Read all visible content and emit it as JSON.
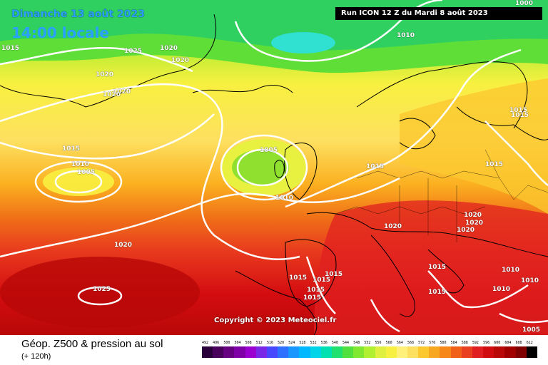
{
  "header": {
    "date_line": "Dimanche 13 août 2023",
    "time_line": "14:00 locale",
    "run_info": "Run ICON 12 Z du Mardi 8 août 2023"
  },
  "copyright": "Copyright © 2023 Meteociel.fr",
  "footer": {
    "title": "Géop. Z500 & pression au sol",
    "subtitle": "(+ 120h)"
  },
  "legend": {
    "levels": [
      "492",
      "496",
      "500",
      "504",
      "508",
      "512",
      "516",
      "520",
      "524",
      "528",
      "532",
      "536",
      "540",
      "544",
      "548",
      "552",
      "556",
      "560",
      "564",
      "568",
      "572",
      "576",
      "580",
      "584",
      "588",
      "592",
      "596",
      "600",
      "604",
      "608",
      "612"
    ],
    "colors": [
      "#2a003a",
      "#48005a",
      "#660080",
      "#8000a8",
      "#9a00d0",
      "#7a28e8",
      "#4848ff",
      "#2e70ff",
      "#1a96ff",
      "#00b8ff",
      "#00d4e8",
      "#00e0b0",
      "#20e070",
      "#50e040",
      "#80e830",
      "#b0f030",
      "#e0f040",
      "#f8f040",
      "#fff07a",
      "#fde060",
      "#fbc830",
      "#f8a820",
      "#f58818",
      "#f06018",
      "#e84020",
      "#e02020",
      "#d00c10",
      "#b80808",
      "#a00000",
      "#7e0000",
      "#000000"
    ]
  },
  "isobars": [
    {
      "label": "1015"
    },
    {
      "label": "1025"
    },
    {
      "label": "1020"
    },
    {
      "label": "1020"
    },
    {
      "label": "1020"
    },
    {
      "label": "1020"
    },
    {
      "label": "1020"
    },
    {
      "label": "1010"
    },
    {
      "label": "1000"
    },
    {
      "label": "1015"
    },
    {
      "label": "1010"
    },
    {
      "label": "1005"
    },
    {
      "label": "1005"
    },
    {
      "label": "1010"
    },
    {
      "label": "1015"
    },
    {
      "label": "1015"
    },
    {
      "label": "1015"
    },
    {
      "label": "1015"
    },
    {
      "label": "1020"
    },
    {
      "label": "1020"
    },
    {
      "label": "1020"
    },
    {
      "label": "1020"
    },
    {
      "label": "1020"
    },
    {
      "label": "1025"
    },
    {
      "label": "1015"
    },
    {
      "label": "1015"
    },
    {
      "label": "1015"
    },
    {
      "label": "1015"
    },
    {
      "label": "1015"
    },
    {
      "label": "1015"
    },
    {
      "label": "1015"
    },
    {
      "label": "1010"
    },
    {
      "label": "1010"
    },
    {
      "label": "1010"
    },
    {
      "label": "1005"
    }
  ]
}
